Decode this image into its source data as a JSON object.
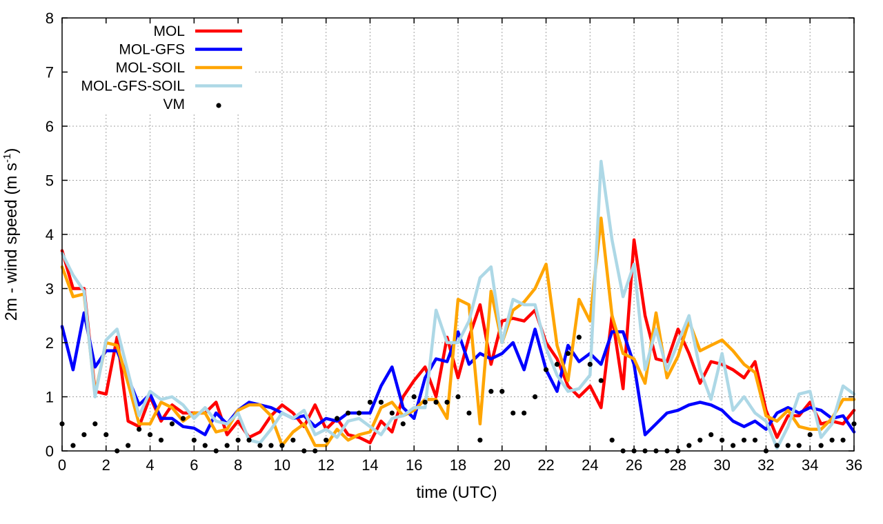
{
  "chart_data": {
    "type": "line",
    "title": "",
    "xlabel": "time (UTC)",
    "ylabel_main": "2m - wind speed  (m s",
    "ylabel_sup": "-1",
    "ylabel_close": ")",
    "xlim": [
      0,
      36
    ],
    "ylim": [
      0,
      8
    ],
    "xticks": [
      0,
      2,
      4,
      6,
      8,
      10,
      12,
      14,
      16,
      18,
      20,
      22,
      24,
      26,
      28,
      30,
      32,
      34,
      36
    ],
    "yticks": [
      0,
      1,
      2,
      3,
      4,
      5,
      6,
      7,
      8
    ],
    "grid": true,
    "legend_position": "top-left",
    "series": [
      {
        "name": "MOL",
        "color": "#ff0000",
        "x": [
          0,
          0.5,
          1,
          1.5,
          2,
          2.5,
          3,
          3.5,
          4,
          4.5,
          5,
          5.5,
          6,
          6.5,
          7,
          7.5,
          8,
          8.5,
          9,
          9.5,
          10,
          10.5,
          11,
          11.5,
          12,
          12.5,
          13,
          13.5,
          14,
          14.5,
          15,
          15.5,
          16,
          16.5,
          17,
          17.5,
          18,
          18.5,
          19,
          19.5,
          20,
          20.5,
          21,
          21.5,
          22,
          22.5,
          23,
          23.5,
          24,
          24.5,
          25,
          25.5,
          26,
          26.5,
          27,
          27.5,
          28,
          28.5,
          29,
          29.5,
          30,
          30.5,
          31,
          31.5,
          32,
          32.5,
          33,
          33.5,
          34,
          34.5,
          35,
          35.5,
          36
        ],
        "y": [
          3.7,
          3.0,
          3.0,
          1.1,
          1.05,
          2.1,
          0.55,
          0.45,
          1.0,
          0.55,
          0.85,
          0.7,
          0.7,
          0.7,
          0.9,
          0.3,
          0.55,
          0.25,
          0.35,
          0.65,
          0.85,
          0.7,
          0.45,
          0.85,
          0.4,
          0.6,
          0.3,
          0.25,
          0.15,
          0.55,
          0.35,
          1.0,
          1.3,
          1.55,
          1.0,
          2.1,
          1.35,
          2.1,
          2.7,
          1.6,
          2.4,
          2.45,
          2.4,
          2.6,
          2.0,
          1.7,
          1.2,
          1.0,
          1.2,
          0.8,
          2.5,
          1.15,
          3.9,
          2.5,
          1.7,
          1.65,
          2.25,
          1.8,
          1.25,
          1.65,
          1.6,
          1.5,
          1.35,
          1.65,
          0.75,
          0.25,
          0.65,
          0.65,
          0.9,
          0.5,
          0.55,
          0.5,
          0.75
        ]
      },
      {
        "name": "MOL-GFS",
        "color": "#0000ff",
        "x": [
          0,
          0.5,
          1,
          1.5,
          2,
          2.5,
          3,
          3.5,
          4,
          4.5,
          5,
          5.5,
          6,
          6.5,
          7,
          7.5,
          8,
          8.5,
          9,
          9.5,
          10,
          10.5,
          11,
          11.5,
          12,
          12.5,
          13,
          13.5,
          14,
          14.5,
          15,
          15.5,
          16,
          16.5,
          17,
          17.5,
          18,
          18.5,
          19,
          19.5,
          20,
          20.5,
          21,
          21.5,
          22,
          22.5,
          23,
          23.5,
          24,
          24.5,
          25,
          25.5,
          26,
          26.5,
          27,
          27.5,
          28,
          28.5,
          29,
          29.5,
          30,
          30.5,
          31,
          31.5,
          32,
          32.5,
          33,
          33.5,
          34,
          34.5,
          35,
          35.5,
          36
        ],
        "y": [
          2.3,
          1.5,
          2.55,
          1.55,
          1.85,
          1.85,
          1.35,
          0.85,
          1.05,
          0.6,
          0.6,
          0.45,
          0.42,
          0.3,
          0.7,
          0.5,
          0.75,
          0.9,
          0.85,
          0.8,
          0.7,
          0.6,
          0.65,
          0.45,
          0.6,
          0.55,
          0.7,
          0.7,
          0.7,
          1.2,
          1.55,
          0.8,
          0.6,
          1.35,
          1.7,
          1.65,
          2.2,
          1.6,
          1.8,
          1.7,
          1.8,
          2.0,
          1.5,
          2.25,
          1.5,
          1.1,
          1.95,
          1.65,
          1.8,
          1.6,
          2.2,
          2.2,
          1.6,
          0.3,
          0.5,
          0.7,
          0.75,
          0.85,
          0.9,
          0.85,
          0.75,
          0.55,
          0.45,
          0.55,
          0.4,
          0.7,
          0.8,
          0.7,
          0.8,
          0.75,
          0.6,
          0.65,
          0.35
        ]
      },
      {
        "name": "MOL-SOIL",
        "color": "#ffa500",
        "x": [
          0,
          0.5,
          1,
          1.5,
          2,
          2.5,
          3,
          3.5,
          4,
          4.5,
          5,
          5.5,
          6,
          6.5,
          7,
          7.5,
          8,
          8.5,
          9,
          9.5,
          10,
          10.5,
          11,
          11.5,
          12,
          12.5,
          13,
          13.5,
          14,
          14.5,
          15,
          15.5,
          16,
          16.5,
          17,
          17.5,
          18,
          18.5,
          19,
          19.5,
          20,
          20.5,
          21,
          21.5,
          22,
          22.5,
          23,
          23.5,
          24,
          24.5,
          25,
          25.5,
          26,
          26.5,
          27,
          27.5,
          28,
          28.5,
          29,
          29.5,
          30,
          30.5,
          31,
          31.5,
          32,
          32.5,
          33,
          33.5,
          34,
          34.5,
          35,
          35.5,
          36
        ],
        "y": [
          3.4,
          2.85,
          2.9,
          1.05,
          2.0,
          1.95,
          1.25,
          0.5,
          0.5,
          0.9,
          0.8,
          0.55,
          0.7,
          0.7,
          0.35,
          0.4,
          0.75,
          0.85,
          0.85,
          0.65,
          0.1,
          0.35,
          0.5,
          0.1,
          0.1,
          0.4,
          0.2,
          0.3,
          0.35,
          0.8,
          0.9,
          0.65,
          0.75,
          0.95,
          0.95,
          0.6,
          2.8,
          2.7,
          0.5,
          2.95,
          2.0,
          2.6,
          2.75,
          3.0,
          3.45,
          1.95,
          1.3,
          2.8,
          2.4,
          4.3,
          2.5,
          1.8,
          1.7,
          1.25,
          2.55,
          1.35,
          1.75,
          2.4,
          1.85,
          1.95,
          2.05,
          1.85,
          1.6,
          1.45,
          0.65,
          0.55,
          0.75,
          0.45,
          0.4,
          0.4,
          0.6,
          0.95,
          0.95
        ]
      },
      {
        "name": "MOL-GFS-SOIL",
        "color": "#add8e6",
        "x": [
          0,
          0.5,
          1,
          1.5,
          2,
          2.5,
          3,
          3.5,
          4,
          4.5,
          5,
          5.5,
          6,
          6.5,
          7,
          7.5,
          8,
          8.5,
          9,
          9.5,
          10,
          10.5,
          11,
          11.5,
          12,
          12.5,
          13,
          13.5,
          14,
          14.5,
          15,
          15.5,
          16,
          16.5,
          17,
          17.5,
          18,
          18.5,
          19,
          19.5,
          20,
          20.5,
          21,
          21.5,
          22,
          22.5,
          23,
          23.5,
          24,
          24.5,
          25,
          25.5,
          26,
          26.5,
          27,
          27.5,
          28,
          28.5,
          29,
          29.5,
          30,
          30.5,
          31,
          31.5,
          32,
          32.5,
          33,
          33.5,
          34,
          34.5,
          35,
          35.5,
          36
        ],
        "y": [
          3.65,
          3.25,
          2.95,
          1.0,
          2.05,
          2.25,
          1.45,
          0.65,
          1.1,
          0.95,
          1.0,
          0.85,
          0.6,
          0.8,
          0.55,
          0.5,
          0.7,
          0.2,
          0.15,
          0.4,
          0.7,
          0.6,
          0.75,
          0.3,
          0.4,
          0.25,
          0.55,
          0.6,
          0.45,
          0.3,
          0.6,
          0.65,
          0.8,
          0.8,
          2.6,
          2.0,
          2.0,
          2.4,
          3.2,
          3.4,
          2.0,
          2.8,
          2.7,
          2.7,
          1.9,
          1.4,
          1.1,
          1.15,
          1.4,
          5.35,
          3.9,
          2.85,
          3.45,
          1.5,
          2.25,
          1.5,
          2.0,
          2.5,
          1.5,
          0.95,
          1.8,
          0.75,
          1.0,
          0.7,
          0.55,
          0.05,
          0.45,
          1.05,
          1.1,
          0.25,
          0.5,
          1.2,
          1.05
        ]
      }
    ],
    "scatter": {
      "name": "VM",
      "color": "#000000",
      "x": [
        0,
        0.5,
        1,
        1.5,
        2,
        2.5,
        3,
        3.5,
        4,
        4.5,
        5,
        5.5,
        6,
        6.5,
        7,
        7.5,
        8,
        8.5,
        9,
        9.5,
        10,
        10.5,
        11,
        11.5,
        12,
        12.5,
        13,
        13.5,
        14,
        14.5,
        15,
        15.5,
        16,
        16.5,
        17,
        17.5,
        18,
        18.5,
        19,
        19.5,
        20,
        20.5,
        21,
        21.5,
        22,
        22.5,
        23,
        23.5,
        24,
        24.5,
        25,
        25.5,
        26,
        26.5,
        27,
        27.5,
        28,
        28.5,
        29,
        29.5,
        30,
        30.5,
        31,
        31.5,
        32,
        32.5,
        33,
        33.5,
        34,
        34.5,
        35,
        35.5,
        36
      ],
      "y": [
        0.5,
        0.1,
        0.3,
        0.5,
        0.3,
        0.0,
        0.1,
        0.4,
        0.3,
        0.2,
        0.5,
        0.6,
        0.2,
        0.1,
        0.0,
        0.1,
        0.2,
        0.2,
        0.1,
        0.1,
        0.1,
        0.2,
        0.0,
        0.0,
        0.2,
        0.6,
        0.7,
        0.7,
        0.9,
        0.9,
        0.7,
        0.5,
        1.0,
        0.9,
        0.9,
        0.9,
        1.0,
        0.7,
        0.2,
        1.1,
        1.1,
        0.7,
        0.7,
        1.0,
        1.5,
        1.6,
        1.8,
        2.1,
        1.6,
        1.3,
        0.2,
        0.0,
        0.0,
        0.0,
        0.0,
        0.0,
        0.0,
        0.1,
        0.2,
        0.3,
        0.2,
        0.1,
        0.2,
        0.2,
        0.0,
        0.1,
        0.1,
        0.1,
        0.3,
        0.1,
        0.2,
        0.2,
        0.5
      ]
    }
  }
}
